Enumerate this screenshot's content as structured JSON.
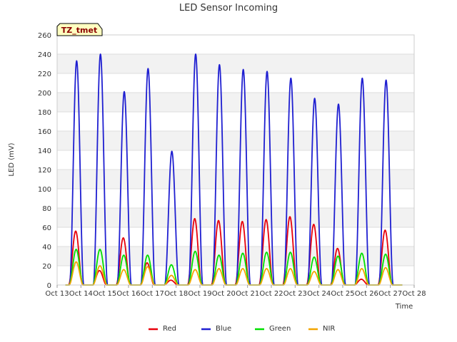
{
  "chart_data": {
    "type": "line",
    "title": "LED Sensor Incoming",
    "xlabel": "Time",
    "ylabel": "LED (mV)",
    "badge": "TZ_tmet",
    "ylim": [
      0,
      260
    ],
    "xlim": [
      13,
      28
    ],
    "yticks": [
      0,
      20,
      40,
      60,
      80,
      100,
      120,
      140,
      160,
      180,
      200,
      220,
      240,
      260
    ],
    "xticks": [
      {
        "value": 13,
        "label": "Oct 13"
      },
      {
        "value": 14,
        "label": "Oct 14"
      },
      {
        "value": 15,
        "label": "Oct 15"
      },
      {
        "value": 16,
        "label": "Oct 16"
      },
      {
        "value": 17,
        "label": "Oct 17"
      },
      {
        "value": 18,
        "label": "Oct 18"
      },
      {
        "value": 19,
        "label": "Oct 19"
      },
      {
        "value": 20,
        "label": "Oct 20"
      },
      {
        "value": 21,
        "label": "Oct 21"
      },
      {
        "value": 22,
        "label": "Oct 22"
      },
      {
        "value": 23,
        "label": "Oct 23"
      },
      {
        "value": 24,
        "label": "Oct 24"
      },
      {
        "value": 25,
        "label": "Oct 25"
      },
      {
        "value": 26,
        "label": "Oct 26"
      },
      {
        "value": 27,
        "label": "Oct 27"
      },
      {
        "value": 28,
        "label": "Oct 28"
      }
    ],
    "x_start": 13.35,
    "x_end": 27.5,
    "series": [
      {
        "name": "Red",
        "color": "#e8000b",
        "daily_peaks": [
          {
            "day": 13.78,
            "value": 56
          },
          {
            "day": 14.78,
            "value": 15
          },
          {
            "day": 15.78,
            "value": 49
          },
          {
            "day": 16.78,
            "value": 23
          },
          {
            "day": 17.78,
            "value": 5
          },
          {
            "day": 18.78,
            "value": 69
          },
          {
            "day": 19.78,
            "value": 67
          },
          {
            "day": 20.78,
            "value": 66
          },
          {
            "day": 21.78,
            "value": 68
          },
          {
            "day": 22.78,
            "value": 71
          },
          {
            "day": 23.78,
            "value": 63
          },
          {
            "day": 24.78,
            "value": 38
          },
          {
            "day": 25.78,
            "value": 6
          },
          {
            "day": 26.78,
            "value": 57
          }
        ]
      },
      {
        "name": "Blue",
        "color": "#1f1fd1",
        "daily_peaks": [
          {
            "day": 13.82,
            "value": 233
          },
          {
            "day": 14.82,
            "value": 240
          },
          {
            "day": 15.82,
            "value": 201
          },
          {
            "day": 16.82,
            "value": 225
          },
          {
            "day": 17.82,
            "value": 139
          },
          {
            "day": 18.82,
            "value": 240
          },
          {
            "day": 19.82,
            "value": 229
          },
          {
            "day": 20.82,
            "value": 224
          },
          {
            "day": 21.82,
            "value": 222
          },
          {
            "day": 22.82,
            "value": 215
          },
          {
            "day": 23.82,
            "value": 194
          },
          {
            "day": 24.82,
            "value": 188
          },
          {
            "day": 25.82,
            "value": 215
          },
          {
            "day": 26.82,
            "value": 213
          }
        ]
      },
      {
        "name": "Green",
        "color": "#00e000",
        "daily_peaks": [
          {
            "day": 13.8,
            "value": 37
          },
          {
            "day": 14.8,
            "value": 37
          },
          {
            "day": 15.8,
            "value": 31
          },
          {
            "day": 16.8,
            "value": 31
          },
          {
            "day": 17.8,
            "value": 21
          },
          {
            "day": 18.8,
            "value": 35
          },
          {
            "day": 19.8,
            "value": 31
          },
          {
            "day": 20.8,
            "value": 33
          },
          {
            "day": 21.8,
            "value": 34
          },
          {
            "day": 22.8,
            "value": 34
          },
          {
            "day": 23.8,
            "value": 29
          },
          {
            "day": 24.8,
            "value": 30
          },
          {
            "day": 25.8,
            "value": 33
          },
          {
            "day": 26.8,
            "value": 32
          }
        ]
      },
      {
        "name": "NIR",
        "color": "#f2a500",
        "daily_peaks": [
          {
            "day": 13.8,
            "value": 24
          },
          {
            "day": 14.8,
            "value": 20
          },
          {
            "day": 15.8,
            "value": 16
          },
          {
            "day": 16.8,
            "value": 19
          },
          {
            "day": 17.8,
            "value": 10
          },
          {
            "day": 18.8,
            "value": 16
          },
          {
            "day": 19.8,
            "value": 17
          },
          {
            "day": 20.8,
            "value": 17
          },
          {
            "day": 21.8,
            "value": 17
          },
          {
            "day": 22.8,
            "value": 17
          },
          {
            "day": 23.8,
            "value": 14
          },
          {
            "day": 24.8,
            "value": 16
          },
          {
            "day": 25.8,
            "value": 17
          },
          {
            "day": 26.8,
            "value": 18
          }
        ]
      }
    ],
    "legend_position": "bottom-center"
  }
}
